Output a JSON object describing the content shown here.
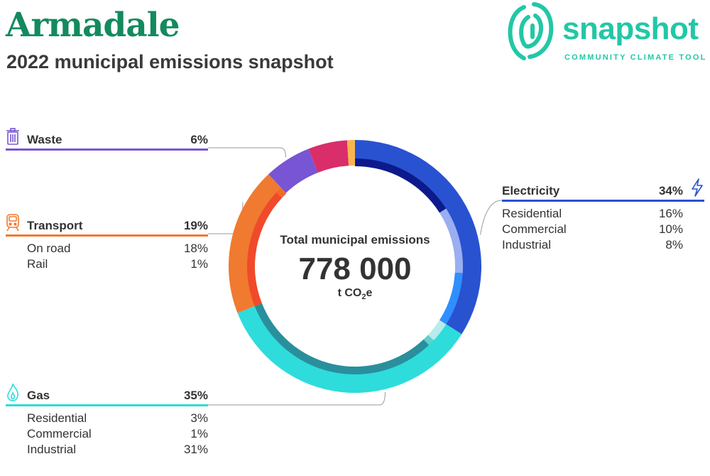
{
  "header": {
    "title": "Armadale",
    "subtitle": "2022 municipal emissions snapshot"
  },
  "logo": {
    "word": "snapshot",
    "tagline": "COMMUNITY CLIMATE TOOL"
  },
  "center": {
    "label": "Total municipal emissions",
    "value": "778 000",
    "unit_prefix": "t CO",
    "unit_sub": "2",
    "unit_suffix": "e"
  },
  "chart_data": {
    "type": "pie",
    "title": "2022 municipal emissions snapshot",
    "total": 778000,
    "unit": "t CO2e",
    "categories": [
      {
        "name": "Electricity",
        "percent": 34,
        "color": "#2952d1",
        "icon": "lightning-icon",
        "subcategories": [
          {
            "name": "Residential",
            "percent": 16,
            "color": "#0d1a8c"
          },
          {
            "name": "Commercial",
            "percent": 10,
            "color": "#9aaef0"
          },
          {
            "name": "Industrial",
            "percent": 8,
            "color": "#2f8fff"
          }
        ]
      },
      {
        "name": "Gas",
        "percent": 35,
        "color": "#2edcdc",
        "icon": "flame-icon",
        "subcategories": [
          {
            "name": "Residential",
            "percent": 3,
            "color": "#b8ecec"
          },
          {
            "name": "Commercial",
            "percent": 1,
            "color": "#5fcfcf"
          },
          {
            "name": "Industrial",
            "percent": 31,
            "color": "#2a8f9c"
          }
        ]
      },
      {
        "name": "Transport",
        "percent": 19,
        "color": "#f07a30",
        "icon": "train-icon",
        "subcategories": [
          {
            "name": "On road",
            "percent": 18,
            "color": "#f04a2a"
          },
          {
            "name": "Rail",
            "percent": 1,
            "color": "#f26a2a"
          }
        ]
      },
      {
        "name": "Waste",
        "percent": 6,
        "color": "#7755d4",
        "icon": "bin-icon",
        "subcategories": []
      },
      {
        "name": "",
        "percent": 5,
        "color": "#d92e6a",
        "icon": "",
        "subcategories": []
      },
      {
        "name": "",
        "percent": 1,
        "color": "#f8b550",
        "icon": "",
        "subcategories": []
      }
    ]
  }
}
